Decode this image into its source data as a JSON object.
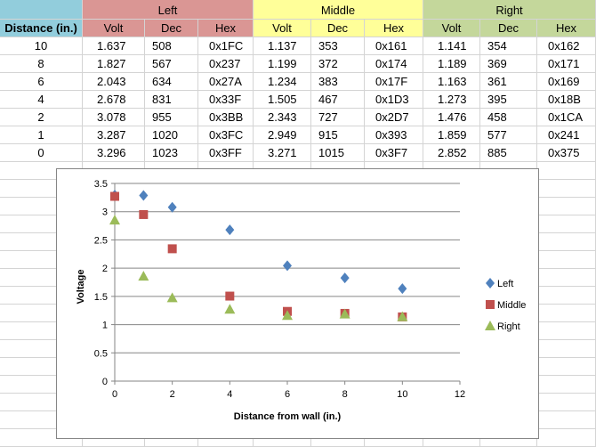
{
  "table": {
    "distance_header": "Distance (in.)",
    "groups": [
      "Left",
      "Middle",
      "Right"
    ],
    "subheaders": [
      "Volt",
      "Dec",
      "Hex"
    ],
    "rows": [
      {
        "distance": "10",
        "cells": [
          "1.637",
          "508",
          "0x1FC",
          "1.137",
          "353",
          "0x161",
          "1.141",
          "354",
          "0x162"
        ]
      },
      {
        "distance": "8",
        "cells": [
          "1.827",
          "567",
          "0x237",
          "1.199",
          "372",
          "0x174",
          "1.189",
          "369",
          "0x171"
        ]
      },
      {
        "distance": "6",
        "cells": [
          "2.043",
          "634",
          "0x27A",
          "1.234",
          "383",
          "0x17F",
          "1.163",
          "361",
          "0x169"
        ]
      },
      {
        "distance": "4",
        "cells": [
          "2.678",
          "831",
          "0x33F",
          "1.505",
          "467",
          "0x1D3",
          "1.273",
          "395",
          "0x18B"
        ]
      },
      {
        "distance": "2",
        "cells": [
          "3.078",
          "955",
          "0x3BB",
          "2.343",
          "727",
          "0x2D7",
          "1.476",
          "458",
          "0x1CA"
        ]
      },
      {
        "distance": "1",
        "cells": [
          "3.287",
          "1020",
          "0x3FC",
          "2.949",
          "915",
          "0x393",
          "1.859",
          "577",
          "0x241"
        ]
      },
      {
        "distance": "0",
        "cells": [
          "3.296",
          "1023",
          "0x3FF",
          "3.271",
          "1015",
          "0x3F7",
          "2.852",
          "885",
          "0x375"
        ]
      }
    ]
  },
  "colors": {
    "distance_header": "#92cddc",
    "left_header": "#da9694",
    "middle_header": "#ffff99",
    "right_header": "#c4d79b",
    "left_series": "#4f81bd",
    "middle_series": "#c0504d",
    "right_series": "#9bbb59"
  },
  "chart_data": {
    "type": "scatter",
    "title": "",
    "xlabel": "Distance from wall (in.)",
    "ylabel": "Voltage",
    "xlim": [
      0,
      12
    ],
    "ylim": [
      0,
      3.5
    ],
    "xticks": [
      0,
      2,
      4,
      6,
      8,
      10,
      12
    ],
    "yticks": [
      0,
      0.5,
      1,
      1.5,
      2,
      2.5,
      3,
      3.5
    ],
    "grid": "horizontal",
    "legend_position": "right",
    "series": [
      {
        "name": "Left",
        "marker": "diamond",
        "x": [
          10,
          8,
          6,
          4,
          2,
          1,
          0
        ],
        "y": [
          1.637,
          1.827,
          2.043,
          2.678,
          3.078,
          3.287,
          3.296
        ]
      },
      {
        "name": "Middle",
        "marker": "square",
        "x": [
          10,
          8,
          6,
          4,
          2,
          1,
          0
        ],
        "y": [
          1.137,
          1.199,
          1.234,
          1.505,
          2.343,
          2.949,
          3.271
        ]
      },
      {
        "name": "Right",
        "marker": "triangle",
        "x": [
          10,
          8,
          6,
          4,
          2,
          1,
          0
        ],
        "y": [
          1.141,
          1.189,
          1.163,
          1.273,
          1.476,
          1.859,
          2.852
        ]
      }
    ]
  }
}
